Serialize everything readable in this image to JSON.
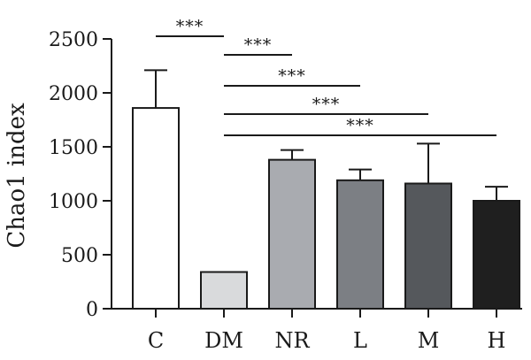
{
  "chart_data": {
    "type": "bar",
    "title": "",
    "xlabel": "",
    "ylabel": "Chao1 index",
    "ylim": [
      0,
      2500
    ],
    "yticks": [
      0,
      500,
      1000,
      1500,
      2000,
      2500
    ],
    "categories": [
      "C",
      "DM",
      "NR",
      "L",
      "M",
      "H"
    ],
    "values": [
      1860,
      340,
      1380,
      1190,
      1160,
      1000
    ],
    "errors": [
      350,
      0,
      90,
      100,
      370,
      130
    ],
    "bar_colors": [
      "#ffffff",
      "#d9dadc",
      "#a9abb0",
      "#7c7f84",
      "#55585c",
      "#1f1f1f"
    ],
    "grid": false,
    "significance": [
      {
        "from": "C",
        "to": "DM",
        "label": "***"
      },
      {
        "from": "DM",
        "to": "NR",
        "label": "***"
      },
      {
        "from": "DM",
        "to": "L",
        "label": "***"
      },
      {
        "from": "DM",
        "to": "M",
        "label": "***"
      },
      {
        "from": "DM",
        "to": "H",
        "label": "***"
      }
    ]
  }
}
